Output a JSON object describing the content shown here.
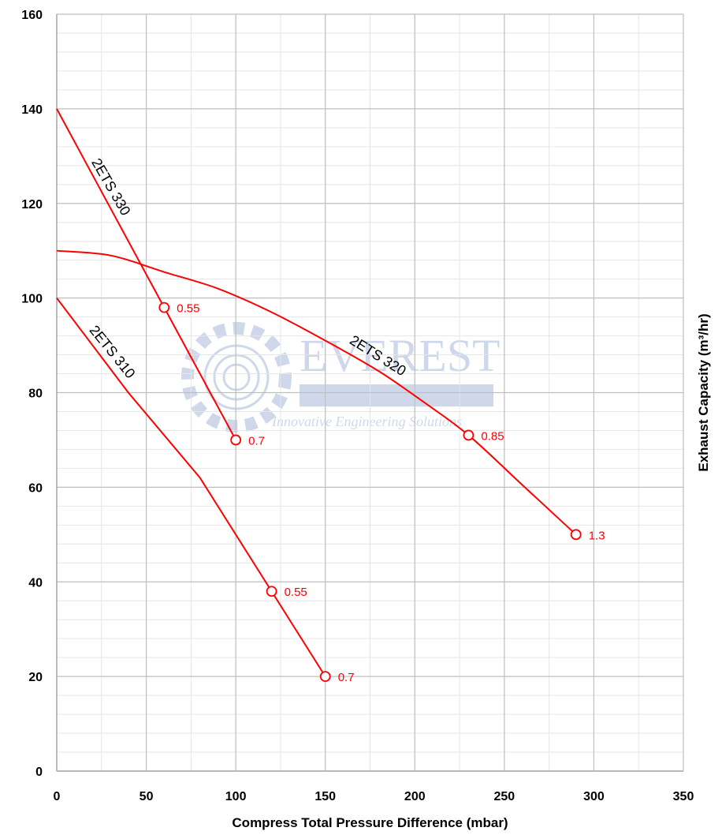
{
  "chart_data": {
    "type": "line",
    "title": "",
    "xlabel": "Compress Total Pressure Difference (mbar)",
    "ylabel": "Exhaust Capacity (m³/hr)",
    "xlim": [
      0,
      350
    ],
    "ylim": [
      0,
      160
    ],
    "xticks": [
      0,
      50,
      100,
      150,
      200,
      250,
      300,
      350
    ],
    "yticks": [
      0,
      20,
      40,
      60,
      80,
      100,
      120,
      140,
      160
    ],
    "x_minor_step": 25,
    "y_minor_step": 4,
    "grid": true,
    "line_color": "#ff0000",
    "series": [
      {
        "name": "2ETS 330",
        "points": [
          [
            0,
            140
          ],
          [
            60,
            98
          ],
          [
            100,
            70
          ]
        ],
        "markers": [
          {
            "x": 60,
            "y": 98,
            "label": "0.55"
          },
          {
            "x": 100,
            "y": 70,
            "label": "0.7"
          }
        ]
      },
      {
        "name": "2ETS 320",
        "points": [
          [
            0,
            110
          ],
          [
            30,
            109
          ],
          [
            60,
            105.5
          ],
          [
            90,
            102
          ],
          [
            120,
            97
          ],
          [
            150,
            91
          ],
          [
            180,
            84.5
          ],
          [
            205,
            78
          ],
          [
            230,
            71
          ],
          [
            260,
            60.5
          ],
          [
            290,
            50
          ]
        ],
        "markers": [
          {
            "x": 230,
            "y": 71,
            "label": "0.85"
          },
          {
            "x": 290,
            "y": 50,
            "label": "1.3"
          }
        ]
      },
      {
        "name": "2ETS 310",
        "points": [
          [
            0,
            100
          ],
          [
            40,
            80
          ],
          [
            80,
            62
          ],
          [
            100,
            50
          ],
          [
            120,
            38
          ],
          [
            150,
            20
          ]
        ],
        "markers": [
          {
            "x": 120,
            "y": 38,
            "label": "0.55"
          },
          {
            "x": 150,
            "y": 20,
            "label": "0.7"
          }
        ]
      }
    ]
  },
  "watermark": {
    "brand": "EVEREST",
    "tagline": "Innovative Engineering Solutions"
  }
}
